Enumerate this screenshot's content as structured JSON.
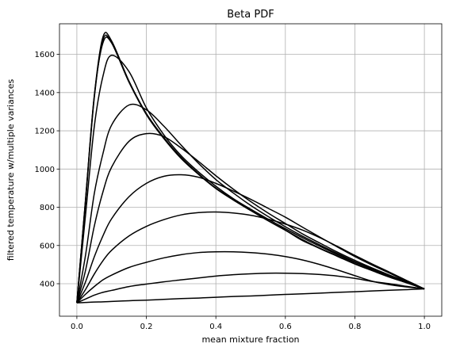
{
  "chart_data": {
    "type": "line",
    "title": "Beta PDF",
    "xlabel": "mean mixture fraction",
    "ylabel": "filtered temperature w/multiple variances",
    "xlim": [
      -0.05,
      1.05
    ],
    "ylim": [
      230,
      1760
    ],
    "xticks": [
      0.0,
      0.2,
      0.4,
      0.6,
      0.8,
      1.0
    ],
    "xtick_labels": [
      "0.0",
      "0.2",
      "0.4",
      "0.6",
      "0.8",
      "1.0"
    ],
    "yticks": [
      400,
      600,
      800,
      1000,
      1200,
      1400,
      1600
    ],
    "ytick_labels": [
      "400",
      "600",
      "800",
      "1000",
      "1200",
      "1400",
      "1600"
    ],
    "grid": true,
    "line_color": "#000000",
    "x": [
      0.0,
      0.025,
      0.05,
      0.075,
      0.1,
      0.15,
      0.2,
      0.25,
      0.3,
      0.35,
      0.4,
      0.45,
      0.5,
      0.55,
      0.6,
      0.65,
      0.7,
      0.75,
      0.8,
      0.85,
      0.9,
      0.95,
      1.0
    ],
    "series": [
      {
        "values": [
          300,
          840,
          1380,
          1660,
          1660,
          1455,
          1290,
          1165,
          1060,
          975,
          900,
          840,
          785,
          730,
          680,
          625,
          585,
          545,
          505,
          470,
          435,
          405,
          373
        ]
      },
      {
        "values": [
          300,
          840,
          1380,
          1690,
          1670,
          1460,
          1290,
          1165,
          1060,
          975,
          900,
          840,
          785,
          730,
          680,
          630,
          585,
          545,
          505,
          470,
          435,
          405,
          373
        ]
      },
      {
        "values": [
          300,
          830,
          1370,
          1675,
          1660,
          1455,
          1285,
          1160,
          1055,
          972,
          898,
          838,
          783,
          730,
          680,
          628,
          583,
          543,
          503,
          468,
          434,
          404,
          373
        ]
      },
      {
        "values": [
          300,
          760,
          1220,
          1485,
          1595,
          1510,
          1320,
          1180,
          1070,
          985,
          910,
          845,
          790,
          738,
          688,
          640,
          595,
          552,
          512,
          476,
          440,
          407,
          373
        ]
      },
      {
        "values": [
          300,
          550,
          870,
          1080,
          1230,
          1335,
          1310,
          1225,
          1125,
          1030,
          945,
          875,
          810,
          752,
          698,
          648,
          602,
          558,
          515,
          478,
          442,
          408,
          373
        ]
      },
      {
        "values": [
          300,
          470,
          700,
          880,
          1010,
          1145,
          1185,
          1170,
          1110,
          1040,
          965,
          895,
          830,
          770,
          715,
          660,
          612,
          565,
          522,
          482,
          445,
          410,
          373
        ]
      },
      {
        "values": [
          300,
          410,
          540,
          650,
          740,
          855,
          925,
          962,
          970,
          957,
          925,
          885,
          842,
          795,
          748,
          695,
          643,
          592,
          542,
          497,
          455,
          413,
          373
        ]
      },
      {
        "values": [
          300,
          370,
          450,
          520,
          575,
          650,
          700,
          735,
          760,
          772,
          775,
          770,
          758,
          738,
          712,
          680,
          640,
          595,
          548,
          503,
          460,
          416,
          373
        ]
      },
      {
        "values": [
          300,
          345,
          385,
          420,
          445,
          485,
          512,
          535,
          552,
          563,
          567,
          567,
          563,
          555,
          542,
          524,
          500,
          472,
          442,
          413,
          395,
          383,
          373
        ]
      },
      {
        "values": [
          300,
          320,
          340,
          355,
          365,
          385,
          398,
          410,
          420,
          430,
          440,
          447,
          452,
          455,
          455,
          453,
          448,
          440,
          428,
          412,
          400,
          386,
          373
        ]
      },
      {
        "values": [
          300,
          302,
          304,
          305,
          307,
          311,
          314,
          318,
          322,
          325,
          329,
          333,
          336,
          340,
          344,
          347,
          351,
          355,
          358,
          362,
          366,
          369,
          373
        ]
      }
    ]
  }
}
